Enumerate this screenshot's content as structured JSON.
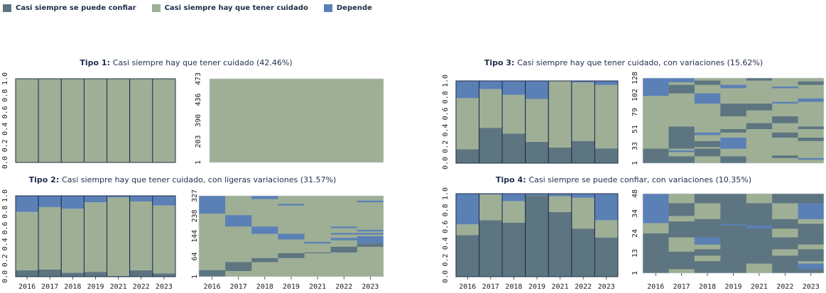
{
  "legend": {
    "items": [
      {
        "label": "Casi siempre se puede confiar",
        "color": "#5d7580"
      },
      {
        "label": "Casi siempre hay que tener cuidado",
        "color": "#9eaf96"
      },
      {
        "label": "Depende",
        "color": "#5b80b6"
      }
    ]
  },
  "colors": {
    "confiar": "#5d7580",
    "cuidado": "#9eaf96",
    "depende": "#5b80b6",
    "border": "#1f2d4a"
  },
  "chart_data": [
    {
      "id": "tipo1",
      "type": "bar",
      "stacked": true,
      "title_bold": "Tipo 1:",
      "title_rest": "Casi siempre hay que tener cuidado (42.46%)",
      "categories": [
        "2016",
        "2017",
        "2018",
        "2019",
        "2021",
        "2022",
        "2023"
      ],
      "ylim": [
        0,
        1
      ],
      "yticks": [
        "0.0",
        "0.2",
        "0.4",
        "0.6",
        "0.8",
        "1.0"
      ],
      "series": [
        {
          "key": "confiar",
          "values": [
            0,
            0,
            0,
            0,
            0,
            0,
            0
          ]
        },
        {
          "key": "cuidado",
          "values": [
            1,
            1,
            1,
            1,
            1,
            1,
            1
          ]
        },
        {
          "key": "depende",
          "values": [
            0,
            0,
            0,
            0,
            0,
            0,
            0
          ]
        }
      ],
      "sequence": {
        "type": "heatmap",
        "yticks": [
          "1",
          "203",
          "390",
          "436",
          "473"
        ],
        "blocks": []
      }
    },
    {
      "id": "tipo2",
      "type": "bar",
      "stacked": true,
      "title_bold": "Tipo 2:",
      "title_rest": "Casi siempre hay que tener cuidado, con ligeras variaciones (31.57%)",
      "categories": [
        "2016",
        "2017",
        "2018",
        "2019",
        "2021",
        "2022",
        "2023"
      ],
      "ylim": [
        0,
        1
      ],
      "yticks": [
        "0.0",
        "0.2",
        "0.4",
        "0.6",
        "0.8",
        "1.0"
      ],
      "series": [
        {
          "key": "confiar",
          "values": [
            0.08,
            0.09,
            0.05,
            0.06,
            0.01,
            0.08,
            0.04
          ]
        },
        {
          "key": "cuidado",
          "values": [
            0.72,
            0.77,
            0.79,
            0.86,
            0.97,
            0.85,
            0.84
          ]
        },
        {
          "key": "depende",
          "values": [
            0.2,
            0.14,
            0.16,
            0.08,
            0.02,
            0.07,
            0.12
          ]
        }
      ],
      "sequence": {
        "type": "heatmap",
        "yticks": [
          "1",
          "64",
          "144",
          "238",
          "327"
        ],
        "blocks": [
          {
            "col": 0,
            "from": 0.0,
            "to": 0.08,
            "state": "confiar"
          },
          {
            "col": 0,
            "from": 0.78,
            "to": 1.0,
            "state": "depende"
          },
          {
            "col": 1,
            "from": 0.07,
            "to": 0.18,
            "state": "confiar"
          },
          {
            "col": 1,
            "from": 0.62,
            "to": 0.76,
            "state": "depende"
          },
          {
            "col": 2,
            "from": 0.18,
            "to": 0.23,
            "state": "confiar"
          },
          {
            "col": 2,
            "from": 0.53,
            "to": 0.62,
            "state": "depende"
          },
          {
            "col": 2,
            "from": 0.96,
            "to": 1.0,
            "state": "depende"
          },
          {
            "col": 3,
            "from": 0.23,
            "to": 0.29,
            "state": "confiar"
          },
          {
            "col": 3,
            "from": 0.46,
            "to": 0.53,
            "state": "depende"
          },
          {
            "col": 3,
            "from": 0.88,
            "to": 0.9,
            "state": "depende"
          },
          {
            "col": 4,
            "from": 0.41,
            "to": 0.43,
            "state": "depende"
          },
          {
            "col": 4,
            "from": 0.29,
            "to": 0.3,
            "state": "confiar"
          },
          {
            "col": 5,
            "from": 0.3,
            "to": 0.37,
            "state": "confiar"
          },
          {
            "col": 5,
            "from": 0.45,
            "to": 0.48,
            "state": "depende"
          },
          {
            "col": 5,
            "from": 0.52,
            "to": 0.54,
            "state": "depende"
          },
          {
            "col": 5,
            "from": 0.6,
            "to": 0.62,
            "state": "depende"
          },
          {
            "col": 6,
            "from": 0.37,
            "to": 0.41,
            "state": "confiar"
          },
          {
            "col": 6,
            "from": 0.41,
            "to": 0.5,
            "state": "depende"
          },
          {
            "col": 6,
            "from": 0.52,
            "to": 0.54,
            "state": "depende"
          },
          {
            "col": 6,
            "from": 0.56,
            "to": 0.58,
            "state": "depende"
          },
          {
            "col": 6,
            "from": 0.92,
            "to": 0.94,
            "state": "depende"
          }
        ]
      }
    },
    {
      "id": "tipo3",
      "type": "bar",
      "stacked": true,
      "title_bold": "Tipo 3:",
      "title_rest": "Casi siempre hay que tener cuidado, con variaciones (15.62%)",
      "categories": [
        "2016",
        "2017",
        "2018",
        "2019",
        "2021",
        "2022",
        "2023"
      ],
      "ylim": [
        0,
        1
      ],
      "yticks": [
        "0.0",
        "0.2",
        "0.4",
        "0.6",
        "0.8",
        "1.0"
      ],
      "series": [
        {
          "key": "confiar",
          "values": [
            0.17,
            0.43,
            0.36,
            0.26,
            0.19,
            0.27,
            0.18
          ]
        },
        {
          "key": "cuidado",
          "values": [
            0.62,
            0.47,
            0.47,
            0.52,
            0.81,
            0.71,
            0.77
          ]
        },
        {
          "key": "depende",
          "values": [
            0.21,
            0.1,
            0.17,
            0.22,
            0.0,
            0.02,
            0.05
          ]
        }
      ],
      "sequence": {
        "type": "heatmap",
        "yticks": [
          "1",
          "33",
          "51",
          "79",
          "102",
          "128"
        ],
        "blocks": [
          {
            "col": 0,
            "from": 0.0,
            "to": 0.17,
            "state": "confiar"
          },
          {
            "col": 0,
            "from": 0.79,
            "to": 1.0,
            "state": "depende"
          },
          {
            "col": 1,
            "from": 0.0,
            "to": 0.08,
            "state": "confiar"
          },
          {
            "col": 1,
            "from": 0.13,
            "to": 0.15,
            "state": "depende"
          },
          {
            "col": 1,
            "from": 0.17,
            "to": 0.43,
            "state": "confiar"
          },
          {
            "col": 1,
            "from": 0.82,
            "to": 0.92,
            "state": "confiar"
          },
          {
            "col": 1,
            "from": 0.95,
            "to": 1.0,
            "state": "depende"
          },
          {
            "col": 2,
            "from": 0.08,
            "to": 0.17,
            "state": "confiar"
          },
          {
            "col": 2,
            "from": 0.19,
            "to": 0.26,
            "state": "confiar"
          },
          {
            "col": 2,
            "from": 0.33,
            "to": 0.36,
            "state": "depende"
          },
          {
            "col": 2,
            "from": 0.7,
            "to": 0.82,
            "state": "depende"
          },
          {
            "col": 2,
            "from": 0.92,
            "to": 0.97,
            "state": "confiar"
          },
          {
            "col": 3,
            "from": 0.0,
            "to": 0.08,
            "state": "confiar"
          },
          {
            "col": 3,
            "from": 0.17,
            "to": 0.3,
            "state": "depende"
          },
          {
            "col": 3,
            "from": 0.36,
            "to": 0.4,
            "state": "confiar"
          },
          {
            "col": 3,
            "from": 0.55,
            "to": 0.7,
            "state": "confiar"
          },
          {
            "col": 3,
            "from": 0.88,
            "to": 0.92,
            "state": "depende"
          },
          {
            "col": 4,
            "from": 0.4,
            "to": 0.47,
            "state": "confiar"
          },
          {
            "col": 4,
            "from": 0.62,
            "to": 0.7,
            "state": "confiar"
          },
          {
            "col": 4,
            "from": 0.97,
            "to": 1.0,
            "state": "confiar"
          },
          {
            "col": 5,
            "from": 0.06,
            "to": 0.09,
            "state": "confiar"
          },
          {
            "col": 5,
            "from": 0.3,
            "to": 0.36,
            "state": "confiar"
          },
          {
            "col": 5,
            "from": 0.47,
            "to": 0.55,
            "state": "confiar"
          },
          {
            "col": 5,
            "from": 0.7,
            "to": 0.72,
            "state": "depende"
          },
          {
            "col": 5,
            "from": 0.88,
            "to": 0.9,
            "state": "depende"
          },
          {
            "col": 6,
            "from": 0.04,
            "to": 0.06,
            "state": "depende"
          },
          {
            "col": 6,
            "from": 0.26,
            "to": 0.3,
            "state": "confiar"
          },
          {
            "col": 6,
            "from": 0.4,
            "to": 0.43,
            "state": "confiar"
          },
          {
            "col": 6,
            "from": 0.72,
            "to": 0.76,
            "state": "depende"
          },
          {
            "col": 6,
            "from": 0.92,
            "to": 0.96,
            "state": "confiar"
          }
        ]
      }
    },
    {
      "id": "tipo4",
      "type": "bar",
      "stacked": true,
      "title_bold": "Tipo 4:",
      "title_rest": "Casi siempre se puede confiar, con variaciones (10.35%)",
      "categories": [
        "2016",
        "2017",
        "2018",
        "2019",
        "2021",
        "2022",
        "2023"
      ],
      "ylim": [
        0,
        1
      ],
      "yticks": [
        "0.0",
        "0.2",
        "0.4",
        "0.6",
        "0.8",
        "1.0"
      ],
      "series": [
        {
          "key": "confiar",
          "values": [
            0.5,
            0.68,
            0.65,
            0.98,
            0.78,
            0.58,
            0.47
          ]
        },
        {
          "key": "cuidado",
          "values": [
            0.13,
            0.31,
            0.26,
            0.0,
            0.19,
            0.37,
            0.21
          ]
        },
        {
          "key": "depende",
          "values": [
            0.37,
            0.01,
            0.09,
            0.02,
            0.03,
            0.05,
            0.32
          ]
        }
      ],
      "sequence": {
        "type": "heatmap",
        "yticks": [
          "1",
          "13",
          "24",
          "34",
          "48"
        ],
        "blocks": [
          {
            "col": 0,
            "from": 0.0,
            "to": 0.5,
            "state": "confiar"
          },
          {
            "col": 0,
            "from": 0.5,
            "to": 0.63,
            "state": "cuidado"
          },
          {
            "col": 0,
            "from": 0.63,
            "to": 1.0,
            "state": "depende"
          },
          {
            "col": 1,
            "from": 0.0,
            "to": 0.05,
            "state": "cuidado"
          },
          {
            "col": 1,
            "from": 0.27,
            "to": 0.45,
            "state": "cuidado"
          },
          {
            "col": 1,
            "from": 0.65,
            "to": 0.72,
            "state": "cuidado"
          },
          {
            "col": 1,
            "from": 0.88,
            "to": 1.0,
            "state": "cuidado"
          },
          {
            "col": 2,
            "from": 0.15,
            "to": 0.22,
            "state": "cuidado"
          },
          {
            "col": 2,
            "from": 0.3,
            "to": 0.36,
            "state": "cuidado"
          },
          {
            "col": 2,
            "from": 0.36,
            "to": 0.45,
            "state": "depende"
          },
          {
            "col": 2,
            "from": 0.68,
            "to": 0.88,
            "state": "cuidado"
          },
          {
            "col": 3,
            "from": 0.6,
            "to": 0.62,
            "state": "depende"
          },
          {
            "col": 4,
            "from": 0.0,
            "to": 0.12,
            "state": "cuidado"
          },
          {
            "col": 4,
            "from": 0.56,
            "to": 0.6,
            "state": "depende"
          },
          {
            "col": 4,
            "from": 0.88,
            "to": 1.0,
            "state": "cuidado"
          },
          {
            "col": 5,
            "from": 0.22,
            "to": 0.3,
            "state": "cuidado"
          },
          {
            "col": 5,
            "from": 0.45,
            "to": 0.56,
            "state": "cuidado"
          },
          {
            "col": 5,
            "from": 0.68,
            "to": 0.88,
            "state": "cuidado"
          },
          {
            "col": 6,
            "from": 0.05,
            "to": 0.12,
            "state": "depende"
          },
          {
            "col": 6,
            "from": 0.12,
            "to": 0.15,
            "state": "cuidado"
          },
          {
            "col": 6,
            "from": 0.3,
            "to": 0.36,
            "state": "cuidado"
          },
          {
            "col": 6,
            "from": 0.62,
            "to": 0.68,
            "state": "cuidado"
          },
          {
            "col": 6,
            "from": 0.68,
            "to": 0.88,
            "state": "depende"
          }
        ]
      }
    }
  ]
}
